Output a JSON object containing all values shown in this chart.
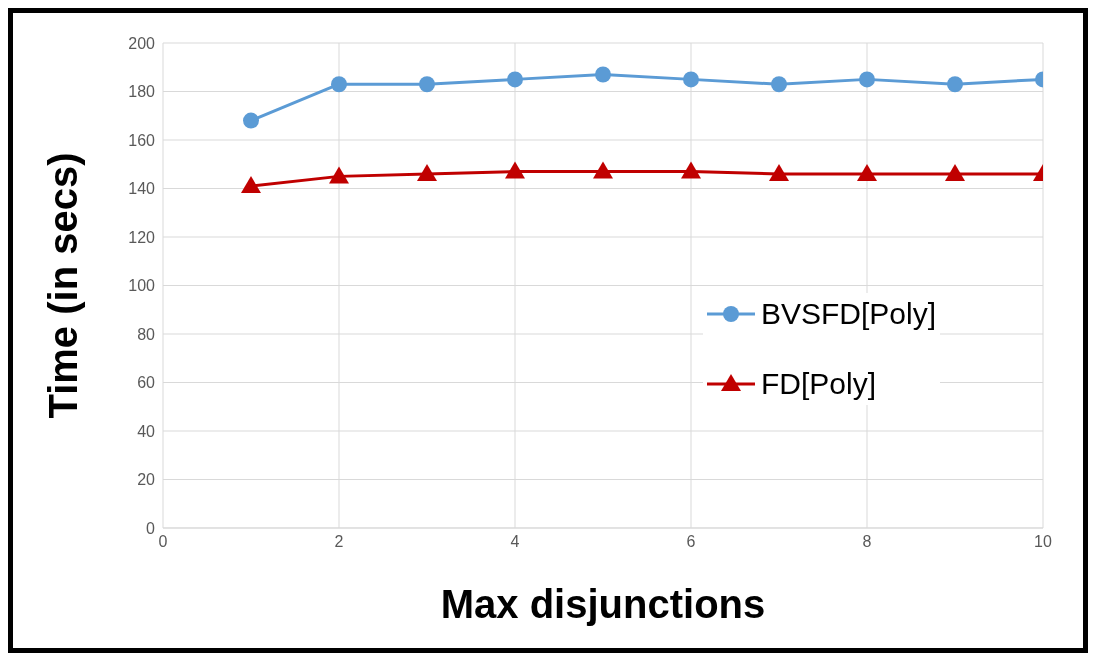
{
  "chart_data": {
    "type": "line",
    "xlabel": "Max disjunctions",
    "ylabel": "Time (in secs)",
    "x": [
      1,
      2,
      3,
      4,
      5,
      6,
      7,
      8,
      9,
      10
    ],
    "series": [
      {
        "name": "BVSFD[Poly]",
        "color": "#5b9bd5",
        "marker": "circle",
        "values": [
          168,
          183,
          183,
          185,
          187,
          185,
          183,
          185,
          183,
          185
        ]
      },
      {
        "name": "FD[Poly]",
        "color": "#c00000",
        "marker": "triangle",
        "values": [
          141,
          145,
          146,
          147,
          147,
          147,
          146,
          146,
          146,
          146
        ]
      }
    ],
    "xlim": [
      0,
      10
    ],
    "xticks": [
      0,
      2,
      4,
      6,
      8,
      10
    ],
    "ylim": [
      0,
      200
    ],
    "yticks": [
      0,
      20,
      40,
      60,
      80,
      100,
      120,
      140,
      160,
      180,
      200
    ],
    "grid": true,
    "legend": "right"
  }
}
